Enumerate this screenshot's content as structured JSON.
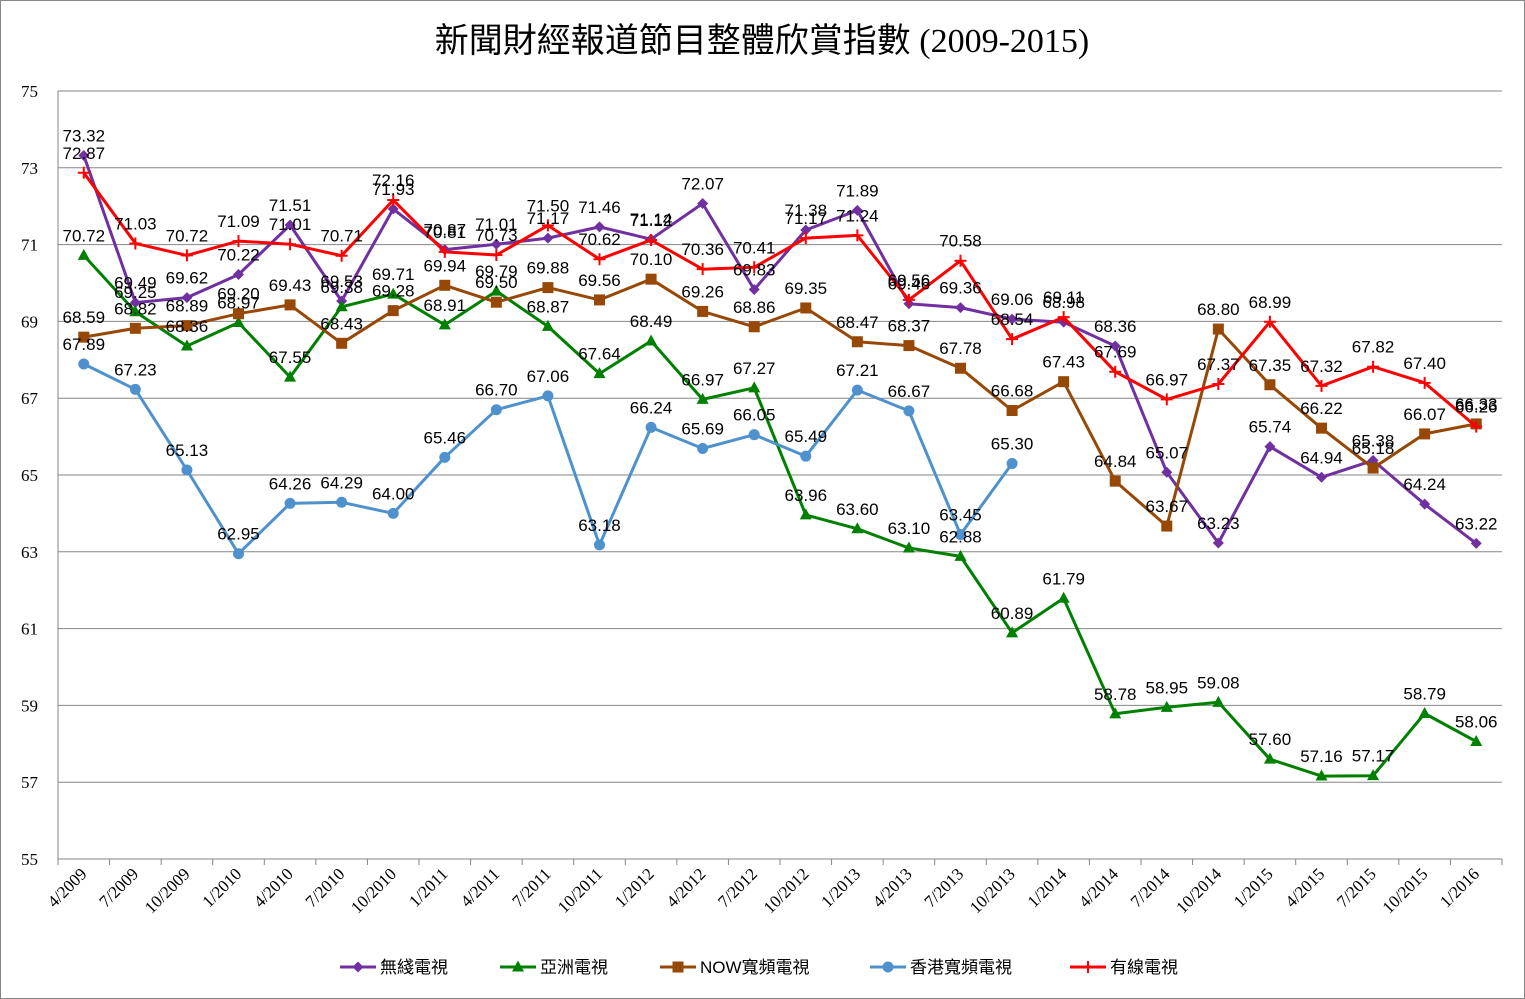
{
  "chart_data": {
    "type": "line",
    "title": "新聞財經報道節目整體欣賞指數 (2009-2015)",
    "xlabel": "",
    "ylabel": "",
    "ylim": [
      55,
      75
    ],
    "yticks": [
      55,
      57,
      59,
      61,
      63,
      65,
      67,
      69,
      71,
      73,
      75
    ],
    "grid": "horizontal",
    "legend_position": "bottom",
    "categories": [
      "4/2009",
      "7/2009",
      "10/2009",
      "1/2010",
      "4/2010",
      "7/2010",
      "10/2010",
      "1/2011",
      "4/2011",
      "7/2011",
      "10/2011",
      "1/2012",
      "4/2012",
      "7/2012",
      "10/2012",
      "1/2013",
      "4/2013",
      "7/2013",
      "10/2013",
      "1/2014",
      "4/2014",
      "7/2014",
      "10/2014",
      "1/2015",
      "4/2015",
      "7/2015",
      "10/2015",
      "1/2016"
    ],
    "series": [
      {
        "name": "無綫電視",
        "color": "#7030A0",
        "marker": "diamond",
        "values": [
          73.32,
          69.49,
          69.62,
          70.22,
          71.51,
          69.53,
          71.93,
          70.87,
          71.01,
          71.17,
          71.46,
          71.14,
          72.07,
          69.83,
          71.38,
          71.89,
          69.46,
          69.36,
          69.06,
          68.98,
          68.36,
          65.07,
          63.23,
          65.74,
          64.94,
          65.38,
          64.24,
          63.22
        ]
      },
      {
        "name": "亞洲電視",
        "color": "#008000",
        "marker": "triangle",
        "values": [
          70.72,
          69.25,
          68.36,
          68.97,
          67.55,
          69.38,
          69.71,
          68.91,
          69.79,
          68.87,
          67.64,
          68.49,
          66.97,
          67.27,
          63.96,
          63.6,
          63.1,
          62.88,
          60.89,
          61.79,
          58.78,
          58.95,
          59.08,
          57.6,
          57.16,
          57.17,
          58.79,
          58.06
        ]
      },
      {
        "name": "NOW寬頻電視",
        "color": "#974806",
        "marker": "square",
        "values": [
          68.59,
          68.82,
          68.89,
          69.2,
          69.43,
          68.43,
          69.28,
          69.94,
          69.5,
          69.88,
          69.56,
          70.1,
          69.26,
          68.86,
          69.35,
          68.47,
          68.37,
          67.78,
          66.68,
          67.43,
          64.84,
          63.67,
          68.8,
          67.35,
          66.22,
          65.18,
          66.07,
          66.33
        ]
      },
      {
        "name": "香港寬頻電視",
        "color": "#4F91CD",
        "marker": "circle",
        "values": [
          67.89,
          67.23,
          65.13,
          62.95,
          64.26,
          64.29,
          64.0,
          65.46,
          66.7,
          67.06,
          63.18,
          66.24,
          65.69,
          66.05,
          65.49,
          67.21,
          66.67,
          63.45,
          65.3,
          null,
          null,
          null,
          null,
          null,
          null,
          null,
          null,
          null
        ]
      },
      {
        "name": "有線電視",
        "color": "#FF0000",
        "marker": "plus",
        "values": [
          72.87,
          71.03,
          70.72,
          71.09,
          71.01,
          70.71,
          72.16,
          70.81,
          70.73,
          71.5,
          70.62,
          71.12,
          70.36,
          70.41,
          71.17,
          71.24,
          69.56,
          70.58,
          68.54,
          69.11,
          67.69,
          66.97,
          67.37,
          68.99,
          67.32,
          67.82,
          67.4,
          66.26
        ]
      }
    ]
  }
}
